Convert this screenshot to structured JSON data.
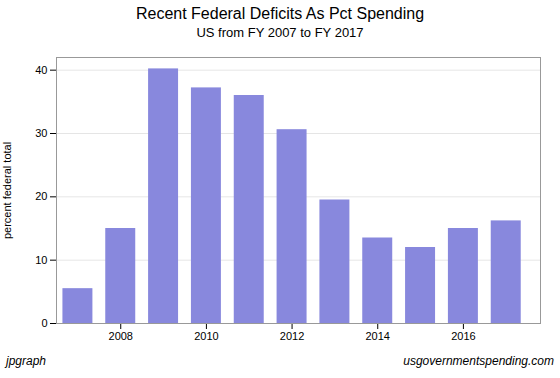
{
  "chart_data": {
    "type": "bar",
    "title": "Recent Federal Deficits As Pct Spending",
    "subtitle": "US from FY 2007 to FY 2017",
    "ylabel": "percent federal total",
    "x": [
      2007,
      2008,
      2009,
      2010,
      2011,
      2012,
      2013,
      2014,
      2015,
      2016,
      2017
    ],
    "values": [
      5.5,
      15.0,
      40.2,
      37.2,
      36.0,
      30.6,
      19.5,
      13.5,
      12.0,
      15.0,
      16.2
    ],
    "color": "#8888dd",
    "xlim": [
      2006.5,
      2017.8
    ],
    "xticks": [
      2008,
      2010,
      2012,
      2014,
      2016
    ],
    "ylim": [
      0,
      42
    ],
    "yticks": [
      0,
      10,
      20,
      30,
      40
    ],
    "grid": true,
    "annotations": [
      "jpgraph",
      "usgovernmentspending.com"
    ]
  }
}
